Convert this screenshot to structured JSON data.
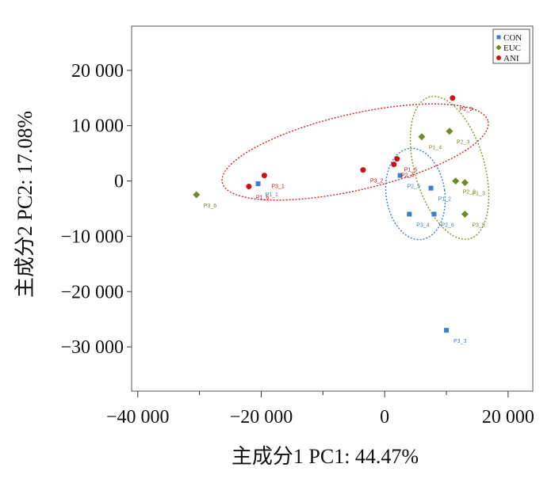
{
  "chart_data": {
    "type": "scatter",
    "xlabel": "主成分1 PC1: 44.47%",
    "ylabel": "主成分2 PC2: 17.08%",
    "xlim": [
      -41000,
      24000
    ],
    "ylim": [
      -38000,
      28000
    ],
    "xticks": [
      -40000,
      -20000,
      0,
      20000
    ],
    "xtick_labels": [
      "−40 000",
      "−20 000",
      "0",
      "20 000"
    ],
    "yticks": [
      20000,
      10000,
      0,
      -10000,
      -20000,
      -30000
    ],
    "ytick_labels": [
      "20 000",
      "10 000",
      "0",
      "−10 000",
      "−20 000",
      "−30 000"
    ],
    "legend_position": "top-right",
    "grid": false,
    "series": [
      {
        "name": "CON",
        "color": "#3a7fd0",
        "marker": "square",
        "points": [
          {
            "label": "P1_1",
            "x": -20500,
            "y": -500
          },
          {
            "label": "P2_5",
            "x": 2500,
            "y": 1000
          },
          {
            "label": "P1_2",
            "x": 7500,
            "y": -1300
          },
          {
            "label": "P3_4",
            "x": 4000,
            "y": -6000
          },
          {
            "label": "P2_6",
            "x": 8000,
            "y": -6000
          },
          {
            "label": "P3_3",
            "x": 10000,
            "y": -27000
          }
        ]
      },
      {
        "name": "EUC",
        "color": "#6b8e23",
        "marker": "diamond",
        "points": [
          {
            "label": "P3_6",
            "x": -30500,
            "y": -2500
          },
          {
            "label": "P1_4",
            "x": 6000,
            "y": 8000
          },
          {
            "label": "P2_3",
            "x": 10500,
            "y": 9000
          },
          {
            "label": "P2_2",
            "x": 11500,
            "y": 0
          },
          {
            "label": "P1_3",
            "x": 13000,
            "y": -300
          },
          {
            "label": "P3_5",
            "x": 13000,
            "y": -6000
          }
        ]
      },
      {
        "name": "ANI",
        "color": "#cc1111",
        "marker": "circle",
        "points": [
          {
            "label": "P1_6",
            "x": -22000,
            "y": -1000
          },
          {
            "label": "P3_1",
            "x": -19500,
            "y": 1000
          },
          {
            "label": "P3_2",
            "x": -3500,
            "y": 2000
          },
          {
            "label": "P2_4",
            "x": 1500,
            "y": 3000
          },
          {
            "label": "P1_5",
            "x": 2000,
            "y": 4000
          },
          {
            "label": "P2_9",
            "x": 11000,
            "y": 15000
          }
        ]
      }
    ]
  }
}
